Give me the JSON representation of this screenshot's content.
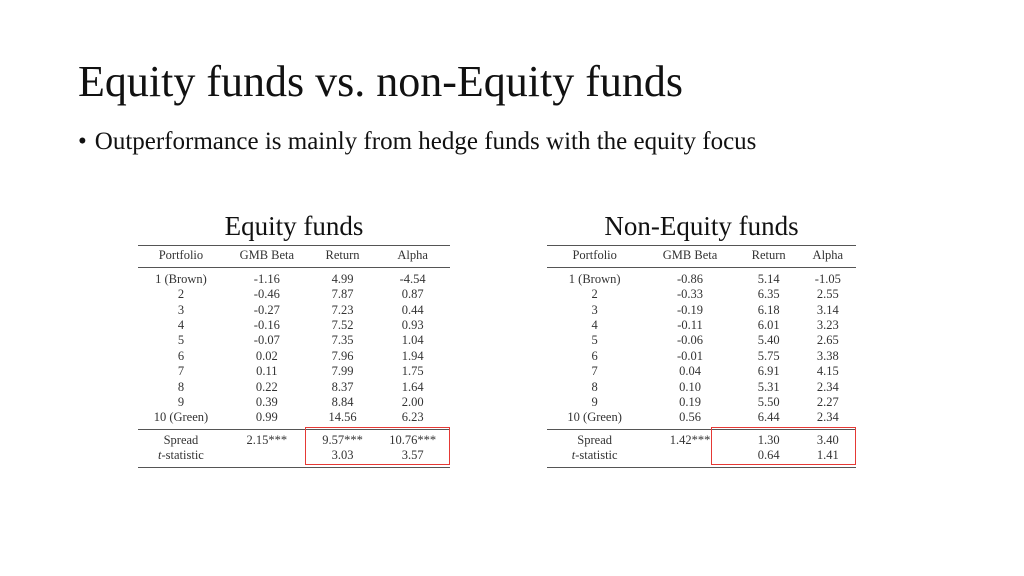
{
  "slide": {
    "title": "Equity funds vs. non-Equity funds",
    "bullet": "Outperformance is mainly from hedge funds with the equity focus",
    "bullet_marker": "•"
  },
  "colors": {
    "highlight": "#e53935",
    "text": "#111111",
    "table_text": "#333333"
  },
  "panels": {
    "equity": {
      "heading": "Equity funds",
      "columns": [
        "Portfolio",
        "GMB Beta",
        "Return",
        "Alpha"
      ],
      "rows": [
        [
          "1 (Brown)",
          "-1.16",
          "4.99",
          "-4.54"
        ],
        [
          "2",
          "-0.46",
          "7.87",
          "0.87"
        ],
        [
          "3",
          "-0.27",
          "7.23",
          "0.44"
        ],
        [
          "4",
          "-0.16",
          "7.52",
          "0.93"
        ],
        [
          "5",
          "-0.07",
          "7.35",
          "1.04"
        ],
        [
          "6",
          "0.02",
          "7.96",
          "1.94"
        ],
        [
          "7",
          "0.11",
          "7.99",
          "1.75"
        ],
        [
          "8",
          "0.22",
          "8.37",
          "1.64"
        ],
        [
          "9",
          "0.39",
          "8.84",
          "2.00"
        ],
        [
          "10 (Green)",
          "0.99",
          "14.56",
          "6.23"
        ]
      ],
      "spread": [
        "Spread",
        "2.15***",
        "9.57***",
        "10.76***"
      ],
      "tstat": [
        "t-statistic",
        "",
        "3.03",
        "3.57"
      ]
    },
    "non_equity": {
      "heading": "Non-Equity funds",
      "columns": [
        "Portfolio",
        "GMB Beta",
        "Return",
        "Alpha"
      ],
      "rows": [
        [
          "1 (Brown)",
          "-0.86",
          "5.14",
          "-1.05"
        ],
        [
          "2",
          "-0.33",
          "6.35",
          "2.55"
        ],
        [
          "3",
          "-0.19",
          "6.18",
          "3.14"
        ],
        [
          "4",
          "-0.11",
          "6.01",
          "3.23"
        ],
        [
          "5",
          "-0.06",
          "5.40",
          "2.65"
        ],
        [
          "6",
          "-0.01",
          "5.75",
          "3.38"
        ],
        [
          "7",
          "0.04",
          "6.91",
          "4.15"
        ],
        [
          "8",
          "0.10",
          "5.31",
          "2.34"
        ],
        [
          "9",
          "0.19",
          "5.50",
          "2.27"
        ],
        [
          "10 (Green)",
          "0.56",
          "6.44",
          "2.34"
        ]
      ],
      "spread": [
        "Spread",
        "1.42***",
        "1.30",
        "3.40"
      ],
      "tstat": [
        "t-statistic",
        "",
        "0.64",
        "1.41"
      ]
    }
  }
}
